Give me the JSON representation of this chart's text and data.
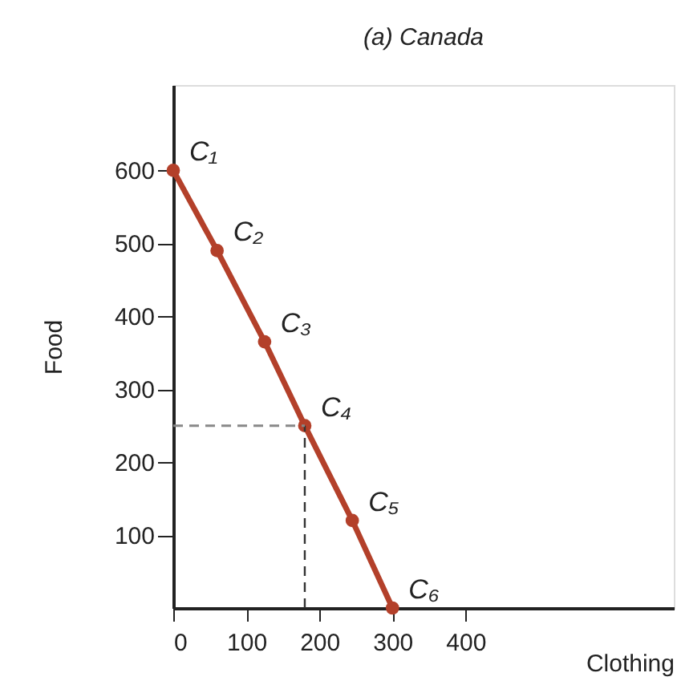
{
  "chart_data": {
    "type": "line",
    "title": "(a) Canada",
    "xlabel": "Clothing",
    "ylabel": "Food",
    "x": [
      0,
      60,
      125,
      180,
      245,
      300
    ],
    "series": [
      {
        "color": "#b3402a",
        "values": [
          600,
          490,
          365,
          250,
          120,
          0
        ]
      }
    ],
    "marker": "circle",
    "line_style": "solid",
    "grid": false,
    "xlim": [
      0,
      685
    ],
    "ylim": [
      0,
      717
    ],
    "xticks": [
      {
        "value": 0,
        "label": "0"
      },
      100,
      200,
      300,
      400
    ],
    "yticks": [
      100,
      200,
      300,
      400,
      500,
      600
    ],
    "ref_lines": [
      {
        "axis": "y",
        "value": 250,
        "line_style": "dashed",
        "color": "#888888"
      },
      {
        "axis": "x",
        "value": 180,
        "line_style": "dashed",
        "color": "#333333"
      }
    ],
    "annotations": [
      {
        "text": "C₁",
        "x": 0,
        "y": 600
      },
      {
        "text": "C₂",
        "x": 60,
        "y": 490
      },
      {
        "text": "C₃",
        "x": 125,
        "y": 365
      },
      {
        "text": "C₄",
        "x": 180,
        "y": 250
      },
      {
        "text": "C₅",
        "x": 245,
        "y": 120
      },
      {
        "text": "C₆",
        "x": 300,
        "y": 0
      }
    ]
  }
}
